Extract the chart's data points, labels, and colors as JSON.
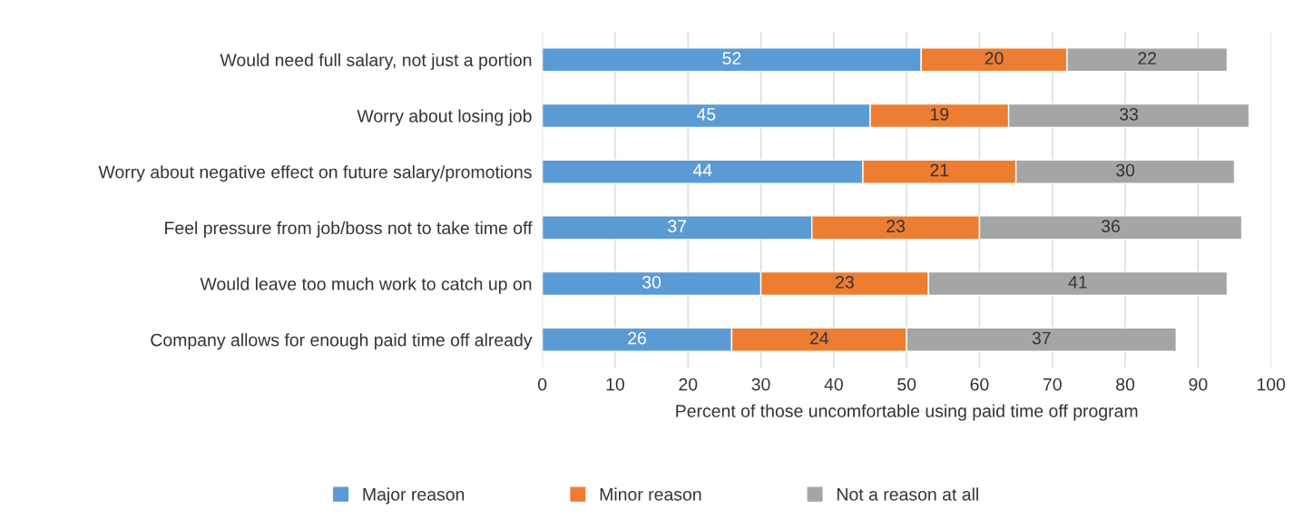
{
  "chart_data": {
    "type": "bar",
    "orientation": "horizontal",
    "stacked": true,
    "xlabel": "Percent of those uncomfortable using paid time off program",
    "categories": [
      "Would need full salary, not just a portion",
      "Worry about losing job",
      "Worry about negative effect on future salary/promotions",
      "Feel pressure from job/boss not to take time off",
      "Would leave too much work to catch up on",
      "Company allows for enough paid time off already"
    ],
    "series": [
      {
        "name": "Major reason",
        "color": "#5b9bd5",
        "values": [
          52,
          45,
          44,
          37,
          30,
          26
        ]
      },
      {
        "name": "Minor reason",
        "color": "#ed7d31",
        "values": [
          20,
          19,
          21,
          23,
          23,
          24
        ]
      },
      {
        "name": "Not a reason at all",
        "color": "#a5a5a5",
        "values": [
          22,
          33,
          30,
          36,
          41,
          37
        ]
      }
    ],
    "xlim": [
      0,
      100
    ],
    "xticks": [
      0,
      10,
      20,
      30,
      40,
      50,
      60,
      70,
      80,
      90,
      100
    ],
    "grid": "x",
    "legend": "bottom",
    "data_labels": true
  }
}
